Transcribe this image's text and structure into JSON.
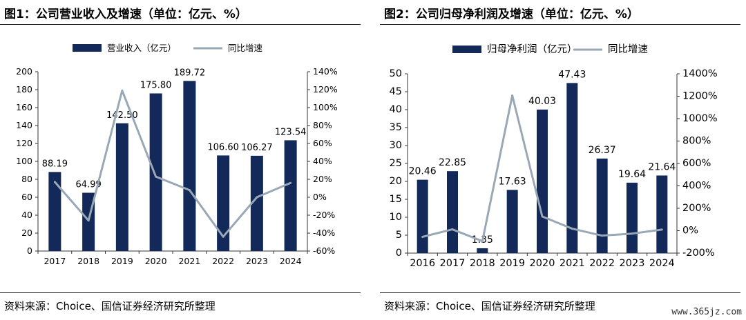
{
  "panels": [
    {
      "title": "图1：公司营业收入及增速（单位：亿元、%）",
      "source": "资料来源：Choice、国信证券经济研究所整理"
    },
    {
      "title": "图2：公司归母净利润及增速（单位：亿元、%）",
      "source": "资料来源：Choice、国信证券经济研究所整理"
    }
  ],
  "watermark": "www.365jz.com",
  "colors": {
    "bar": "#12295a",
    "line": "#9aa8b6",
    "axis": "#333333"
  },
  "chart_data": [
    {
      "type": "bar",
      "categories": [
        "2017",
        "2018",
        "2019",
        "2020",
        "2021",
        "2022",
        "2023",
        "2024"
      ],
      "series": [
        {
          "name": "营业收入（亿元）",
          "type": "bar",
          "axis": "left",
          "values": [
            88.19,
            64.99,
            142.5,
            175.8,
            189.72,
            106.6,
            106.27,
            123.54
          ],
          "labels": [
            "88.19",
            "64.99",
            "142.50",
            "175.80",
            "189.72",
            "106.60",
            "106.27",
            "123.54"
          ]
        },
        {
          "name": "同比增速",
          "type": "line",
          "axis": "right",
          "values": [
            17,
            -26,
            119,
            23,
            8,
            -44,
            0,
            16
          ]
        }
      ],
      "ylim_left": [
        0,
        200
      ],
      "yticks_left": [
        0,
        20,
        40,
        60,
        80,
        100,
        120,
        140,
        160,
        180,
        200
      ],
      "ytick_labels_left": [
        "0",
        "20",
        "40",
        "60",
        "80",
        "100",
        "120",
        "140",
        "160",
        "180",
        "200"
      ],
      "ylim_right": [
        -60,
        140
      ],
      "yticks_right": [
        -60,
        -40,
        -20,
        0,
        20,
        40,
        60,
        80,
        100,
        120,
        140
      ],
      "ytick_labels_right": [
        "-60%",
        "-40%",
        "-20%",
        "0%",
        "20%",
        "40%",
        "60%",
        "80%",
        "100%",
        "120%",
        "140%"
      ],
      "legend_position": "top-center",
      "grid": false
    },
    {
      "type": "bar",
      "categories": [
        "2016",
        "2017",
        "2018",
        "2019",
        "2020",
        "2021",
        "2022",
        "2023",
        "2024"
      ],
      "series": [
        {
          "name": "归母净利润（亿元）",
          "type": "bar",
          "axis": "left",
          "values": [
            20.46,
            22.85,
            1.35,
            17.63,
            40.03,
            47.43,
            26.37,
            19.64,
            21.64
          ],
          "labels": [
            "20.46",
            "22.85",
            "1.35",
            "17.63",
            "40.03",
            "47.43",
            "26.37",
            "19.64",
            "21.64"
          ]
        },
        {
          "name": "同比增速",
          "type": "line",
          "axis": "right",
          "values": [
            -55,
            12,
            -94,
            1206,
            127,
            18,
            -44,
            -26,
            10
          ]
        }
      ],
      "ylim_left": [
        0,
        50
      ],
      "yticks_left": [
        0,
        5,
        10,
        15,
        20,
        25,
        30,
        35,
        40,
        45,
        50
      ],
      "ytick_labels_left": [
        "0",
        "5",
        "10",
        "15",
        "20",
        "25",
        "30",
        "35",
        "40",
        "45",
        "50"
      ],
      "ylim_right": [
        -200,
        1400
      ],
      "yticks_right": [
        -200,
        0,
        200,
        400,
        600,
        800,
        1000,
        1200,
        1400
      ],
      "ytick_labels_right": [
        "-200%",
        "0%",
        "200%",
        "400%",
        "600%",
        "800%",
        "1000%",
        "1200%",
        "1400%"
      ],
      "legend_position": "top-center",
      "grid": false
    }
  ]
}
